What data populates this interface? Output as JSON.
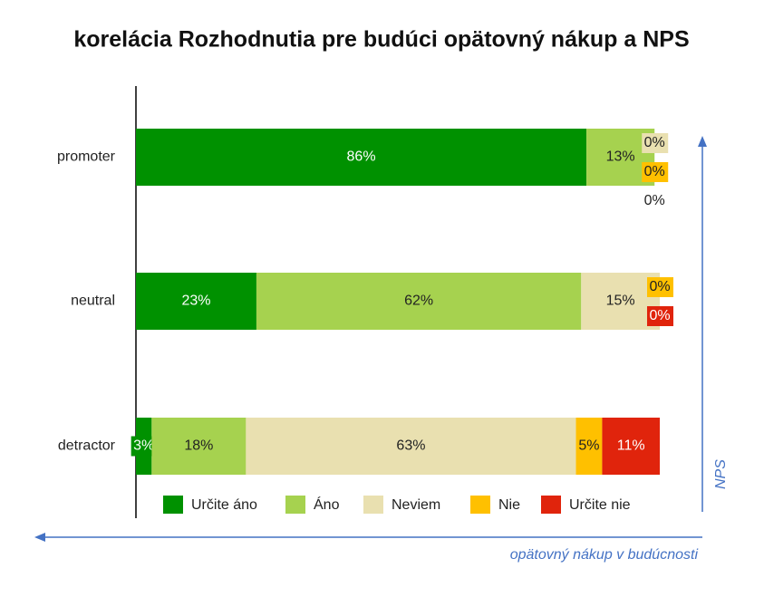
{
  "chart_data": {
    "type": "stacked-bar-horizontal",
    "title": "korelácia Rozhodnutia pre budúci opätovný nákup a NPS",
    "categories": [
      "promoter",
      "neutral",
      "detractor"
    ],
    "series": [
      {
        "name": "Určite áno",
        "color": "#009100",
        "values": [
          86,
          23,
          3
        ],
        "value_labels": [
          "86%",
          "23%",
          "3%"
        ]
      },
      {
        "name": "Áno",
        "color": "#a6d24f",
        "values": [
          13,
          62,
          18
        ],
        "value_labels": [
          "13%",
          "62%",
          "18%"
        ]
      },
      {
        "name": "Neviem",
        "color": "#e9e0b0",
        "values": [
          0,
          15,
          63
        ],
        "value_labels": [
          "0%",
          "15%",
          "63%"
        ]
      },
      {
        "name": "Nie",
        "color": "#ffc000",
        "values": [
          0,
          0,
          5
        ],
        "value_labels": [
          "0%",
          "0%",
          "5%"
        ]
      },
      {
        "name": "Určite nie",
        "color": "#e0240c",
        "values": [
          0,
          0,
          11
        ],
        "value_labels": [
          "0%",
          "0%",
          "11%"
        ]
      }
    ],
    "y_annotation": "NPS",
    "x_annotation": "opätovný nákup v budúcnosti"
  }
}
